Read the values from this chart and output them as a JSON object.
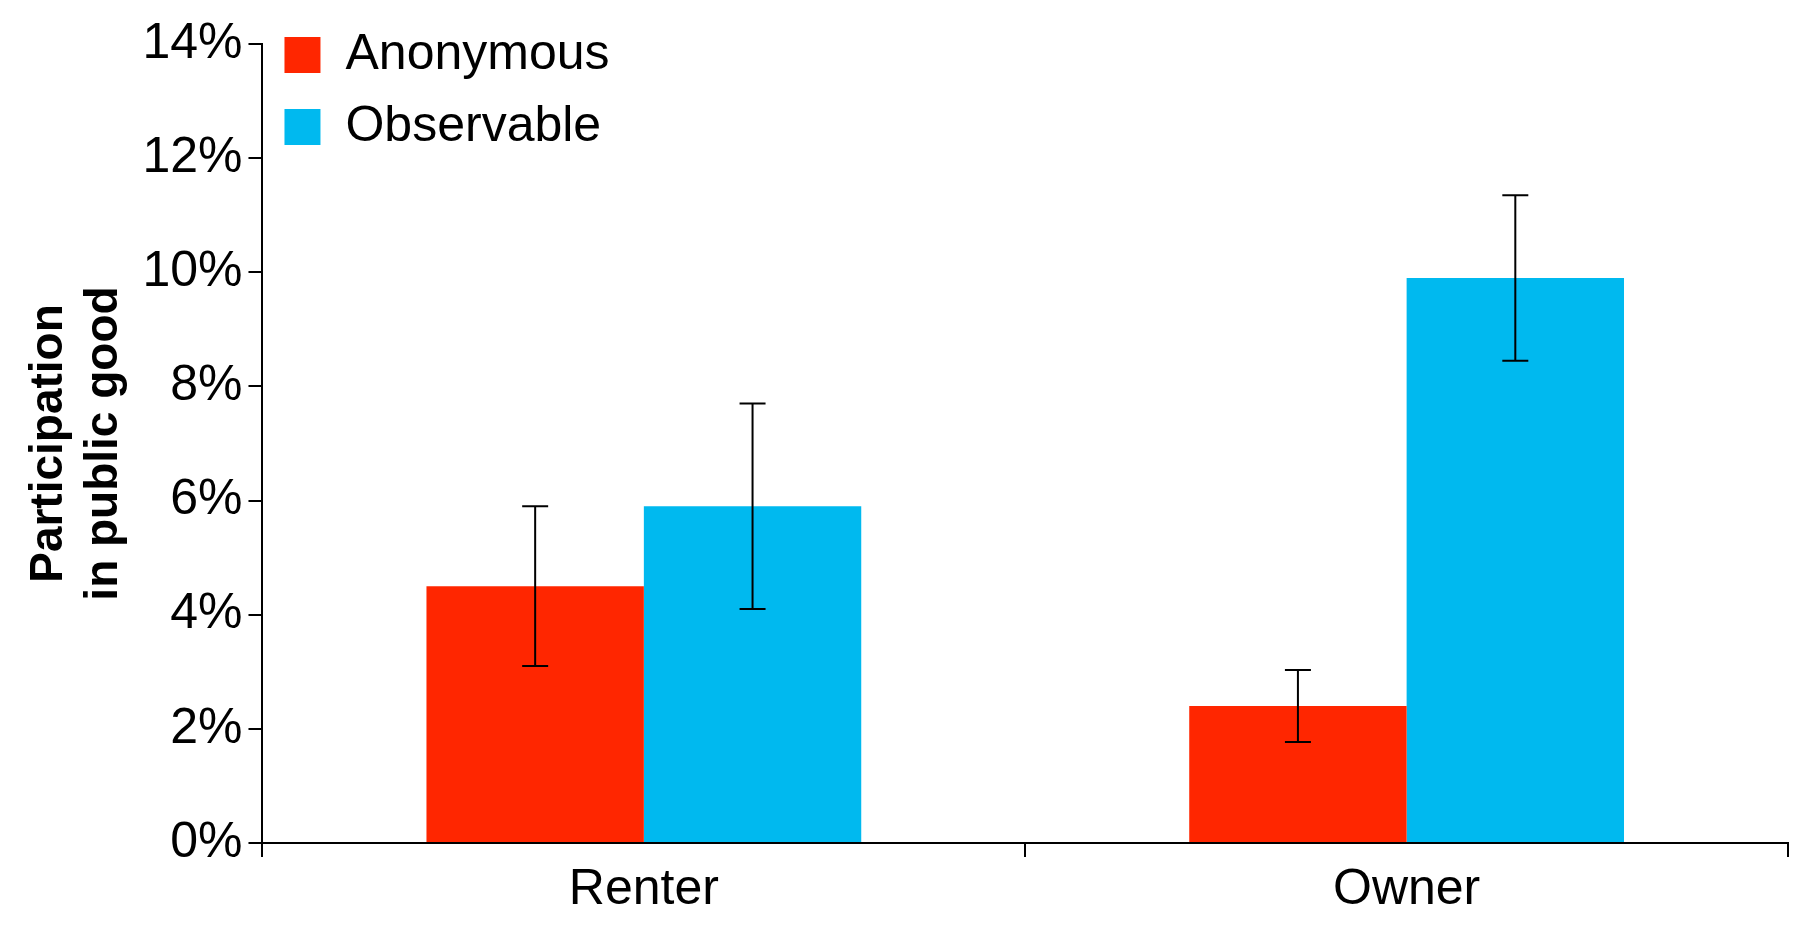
{
  "chart_data": {
    "type": "bar",
    "ylabel": "Participation in public good",
    "categories": [
      "Renter",
      "Owner"
    ],
    "series": [
      {
        "name": "Anonymous",
        "color": "#ff2600",
        "values": [
          4.5,
          2.4
        ],
        "errors": [
          1.4,
          0.63
        ]
      },
      {
        "name": "Observable",
        "color": "#00b9ef",
        "values": [
          5.9,
          9.9
        ],
        "errors": [
          1.8,
          1.45
        ]
      }
    ],
    "ylim": [
      0,
      14
    ],
    "yticks": [
      {
        "value": 0,
        "label": "0%"
      },
      {
        "value": 2,
        "label": "2%"
      },
      {
        "value": 4,
        "label": "4%"
      },
      {
        "value": 6,
        "label": "6%"
      },
      {
        "value": 8,
        "label": "8%"
      },
      {
        "value": 10,
        "label": "10%"
      },
      {
        "value": 12,
        "label": "12%"
      },
      {
        "value": 14,
        "label": "14%"
      }
    ],
    "legend": "top left"
  }
}
